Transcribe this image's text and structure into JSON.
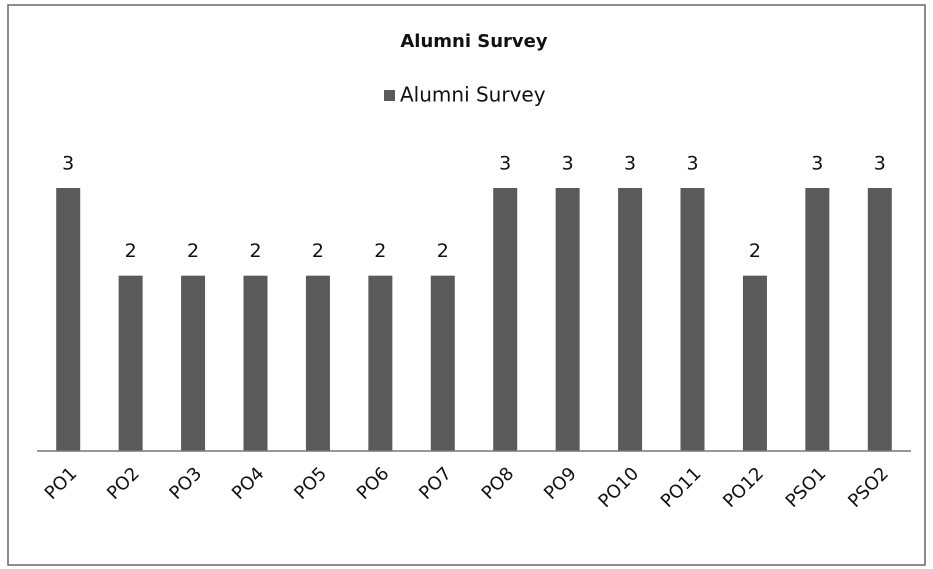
{
  "chart_data": {
    "type": "bar",
    "title": "Alumni Survey",
    "series": [
      {
        "name": "Alumni Survey",
        "color": "#5a5a5a",
        "values": [
          3,
          2,
          2,
          2,
          2,
          2,
          2,
          3,
          3,
          3,
          3,
          2,
          3,
          3
        ]
      }
    ],
    "categories": [
      "PO1",
      "PO2",
      "PO3",
      "PO4",
      "PO5",
      "PO6",
      "PO7",
      "PO8",
      "PO9",
      "PO10",
      "PO11",
      "PO12",
      "PSO1",
      "PSO2"
    ],
    "legend": "top"
  }
}
